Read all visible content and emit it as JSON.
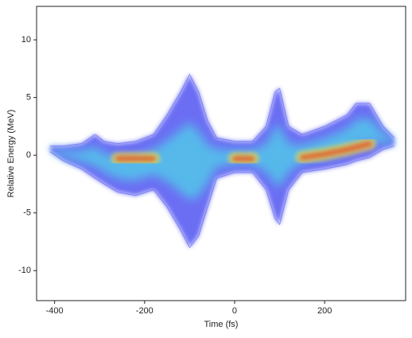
{
  "chart_data": {
    "type": "density",
    "x_label": "Time (fs)",
    "y_label": "Relative Energy (MeV)",
    "xlim": [
      -440,
      380
    ],
    "ylim": [
      -12.6,
      12.9
    ],
    "xticks": [
      -400,
      -200,
      0,
      200
    ],
    "yticks": [
      -10,
      -5,
      0,
      5,
      10
    ],
    "grid": false,
    "x": [
      -410,
      -380,
      -340,
      -310,
      -290,
      -260,
      -220,
      -180,
      -150,
      -120,
      -100,
      -80,
      -60,
      -40,
      0,
      40,
      70,
      90,
      100,
      120,
      150,
      200,
      250,
      270,
      300,
      330,
      355
    ],
    "upper": [
      0.8,
      0.8,
      1.0,
      1.8,
      1.2,
      1.0,
      1.2,
      1.8,
      3.5,
      5.5,
      7.0,
      5.5,
      3.0,
      1.5,
      1.2,
      1.2,
      2.5,
      5.5,
      5.8,
      2.5,
      1.8,
      2.5,
      3.5,
      4.5,
      4.5,
      2.5,
      1.5
    ],
    "lower": [
      0.3,
      -0.5,
      -1.2,
      -2.0,
      -2.5,
      -3.2,
      -3.5,
      -3.0,
      -4.5,
      -6.5,
      -8.0,
      -7.0,
      -4.5,
      -2.0,
      -1.5,
      -1.5,
      -3.0,
      -5.5,
      -6.0,
      -3.0,
      -1.5,
      -1.2,
      -0.8,
      -0.5,
      -0.2,
      0.5,
      0.8
    ],
    "core": [
      null,
      null,
      null,
      null,
      null,
      -0.3,
      -0.3,
      -0.3,
      null,
      null,
      null,
      null,
      null,
      null,
      -0.3,
      -0.3,
      null,
      null,
      null,
      null,
      -0.2,
      0.1,
      0.5,
      0.7,
      1.0,
      null,
      null
    ],
    "envelope_color": "#5b5ef2",
    "mid_color": "#4fd2e8",
    "core_color": "#e8471c"
  }
}
